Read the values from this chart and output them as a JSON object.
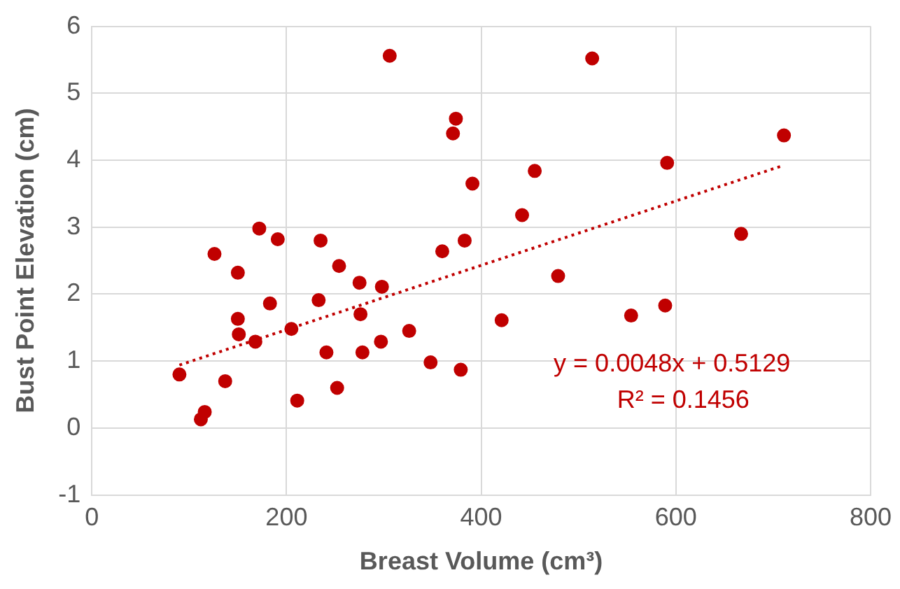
{
  "chart_data": {
    "type": "scatter",
    "xlabel": "Breast Volume (cm³)",
    "ylabel": "Bust Point Elevation (cm)",
    "xlim": [
      0,
      800
    ],
    "xticks": [
      0,
      200,
      400,
      600,
      800
    ],
    "ylim": [
      -1,
      6
    ],
    "yticks": [
      -1,
      0,
      1,
      2,
      3,
      4,
      5,
      6
    ],
    "grid": true,
    "legend": false,
    "annotations": [
      "y = 0.0048x + 0.5129",
      "R² = 0.1456"
    ],
    "series": [
      {
        "color": "#c00000",
        "marker": "circle",
        "x": [
          306,
          374,
          371,
          391,
          172,
          191,
          235,
          383,
          360,
          126,
          150,
          254,
          275,
          298,
          183,
          233,
          276,
          150,
          205,
          326,
          151,
          168,
          297,
          241,
          278,
          348,
          379,
          90,
          137,
          252,
          211,
          116,
          112,
          514,
          711,
          591,
          455,
          442,
          667,
          479,
          421,
          554,
          589
        ],
        "values": [
          5.56,
          4.62,
          4.4,
          3.65,
          2.98,
          2.82,
          2.8,
          2.8,
          2.64,
          2.6,
          2.32,
          2.42,
          2.17,
          2.11,
          1.86,
          1.91,
          1.7,
          1.63,
          1.48,
          1.45,
          1.4,
          1.29,
          1.29,
          1.13,
          1.13,
          0.98,
          0.87,
          0.8,
          0.7,
          0.6,
          0.41,
          0.24,
          0.13,
          5.52,
          4.37,
          3.96,
          3.84,
          3.18,
          2.9,
          2.27,
          1.61,
          1.68,
          1.83
        ]
      },
      {
        "type": "line",
        "color": "#c00000",
        "line_style": "dotted",
        "x": [
          90,
          710
        ],
        "values": [
          0.94,
          3.92
        ]
      }
    ]
  }
}
